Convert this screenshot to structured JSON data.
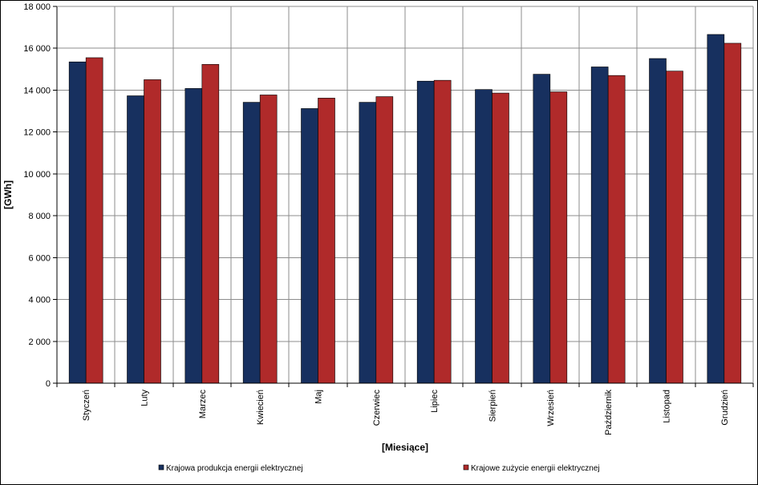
{
  "chart_data": {
    "type": "bar",
    "title": "",
    "xlabel": "[Miesiące]",
    "ylabel": "[GWh]",
    "ylim": [
      0,
      18000
    ],
    "yticks": [
      0,
      2000,
      4000,
      6000,
      8000,
      10000,
      12000,
      14000,
      16000,
      18000
    ],
    "ytick_labels": [
      "0",
      "2 000",
      "4 000",
      "6 000",
      "8 000",
      "10 000",
      "12 000",
      "14 000",
      "16 000",
      "18 000"
    ],
    "grid": true,
    "legend_position": "bottom",
    "categories": [
      "Styczeń",
      "Luty",
      "Marzec",
      "Kwiecień",
      "Maj",
      "Czerwiec",
      "Lipiec",
      "Sierpień",
      "Wrzesień",
      "Październik",
      "Listopad",
      "Grudzień"
    ],
    "series": [
      {
        "name": "Krajowa produkcja energii elektrycznej",
        "color": "#17305F",
        "values": [
          15350,
          13730,
          14080,
          13420,
          13120,
          13420,
          14430,
          14030,
          14760,
          15110,
          15510,
          16660
        ]
      },
      {
        "name": "Krajowe zużycie energii elektrycznej",
        "color": "#B02A2A",
        "values": [
          15550,
          14500,
          15230,
          13770,
          13620,
          13690,
          14470,
          13860,
          13920,
          14700,
          14910,
          16240
        ]
      }
    ]
  }
}
